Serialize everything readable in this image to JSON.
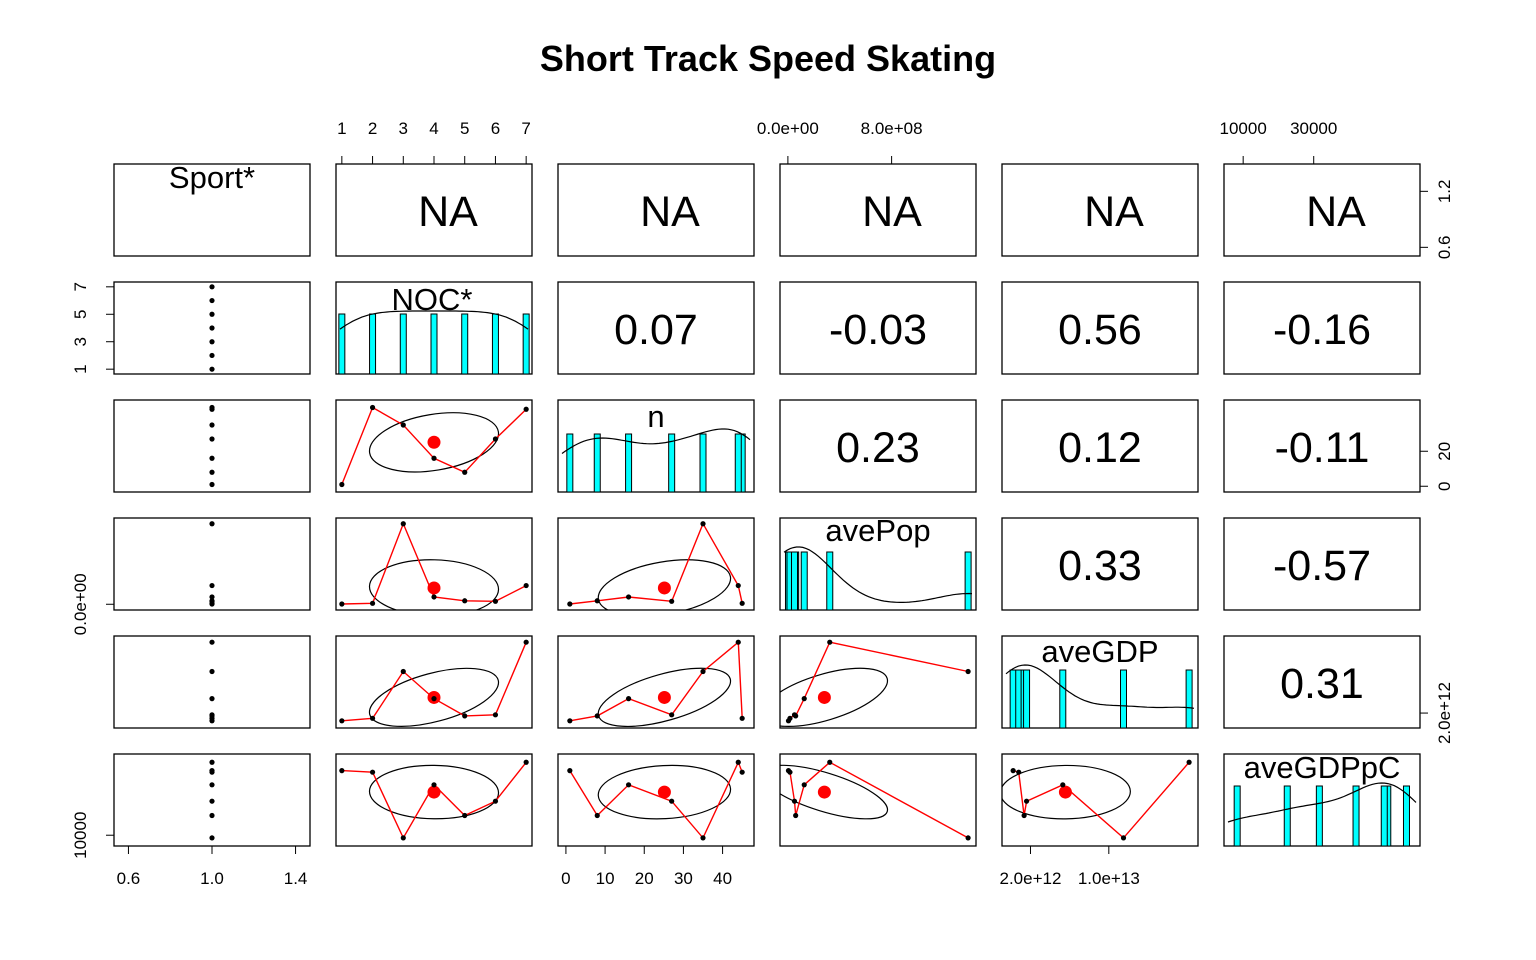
{
  "chart_data": {
    "type": "scatter",
    "title": "Short Track Speed Skating",
    "variables": [
      "Sport*",
      "NOC*",
      "n",
      "avePop",
      "aveGDP",
      "aveGDPpC"
    ],
    "upper_panel_labels": [
      {
        "row": 0,
        "col": 1,
        "text": "NA"
      },
      {
        "row": 0,
        "col": 2,
        "text": "NA"
      },
      {
        "row": 0,
        "col": 3,
        "text": "NA"
      },
      {
        "row": 0,
        "col": 4,
        "text": "NA"
      },
      {
        "row": 0,
        "col": 5,
        "text": "NA"
      },
      {
        "row": 1,
        "col": 2,
        "text": "0.07"
      },
      {
        "row": 1,
        "col": 3,
        "text": "-0.03"
      },
      {
        "row": 1,
        "col": 4,
        "text": "0.56"
      },
      {
        "row": 1,
        "col": 5,
        "text": "-0.16"
      },
      {
        "row": 2,
        "col": 3,
        "text": "0.23"
      },
      {
        "row": 2,
        "col": 4,
        "text": "0.12"
      },
      {
        "row": 2,
        "col": 5,
        "text": "-0.11"
      },
      {
        "row": 3,
        "col": 4,
        "text": "0.33"
      },
      {
        "row": 3,
        "col": 5,
        "text": "-0.57"
      },
      {
        "row": 4,
        "col": 5,
        "text": "0.31"
      }
    ],
    "axis_ticks": {
      "top": [
        {
          "col": 1,
          "labels": [
            "1",
            "2",
            "3",
            "4",
            "5",
            "6",
            "7"
          ]
        },
        {
          "col": 3,
          "labels": [
            "0.0e+00",
            "8.0e+08"
          ]
        },
        {
          "col": 5,
          "labels": [
            "10000",
            "30000"
          ]
        }
      ],
      "bottom": [
        {
          "col": 0,
          "labels": [
            "0.6",
            "1.0",
            "1.4"
          ]
        },
        {
          "col": 2,
          "labels": [
            "0",
            "10",
            "20",
            "30",
            "40"
          ]
        },
        {
          "col": 4,
          "labels": [
            "2.0e+12",
            "1.0e+13"
          ]
        }
      ],
      "left": [
        {
          "row": 1,
          "labels": [
            "1",
            "3",
            "5",
            "7"
          ]
        },
        {
          "row": 3,
          "labels": [
            "0.0e+00"
          ]
        },
        {
          "row": 5,
          "labels": [
            "10000"
          ]
        }
      ],
      "right": [
        {
          "row": 0,
          "labels": [
            "0.6",
            "1.2"
          ]
        },
        {
          "row": 2,
          "labels": [
            "0",
            "20"
          ]
        },
        {
          "row": 4,
          "labels": [
            "2.0e+12"
          ]
        }
      ]
    },
    "series": [
      {
        "values": [
          1,
          1,
          1,
          1,
          1,
          1,
          1
        ]
      },
      {
        "values": [
          1,
          2,
          3,
          4,
          5,
          6,
          7
        ]
      },
      {
        "values": [
          1,
          45,
          35,
          16,
          8,
          27,
          44
        ]
      },
      {
        "values": [
          4500000,
          16000000,
          1390000000,
          126000000,
          60000000,
          51000000,
          323000000
        ]
      },
      {
        "values": [
          230000000000,
          800000000000,
          11500000000000,
          5300000000000,
          1350000000000,
          1600000000000,
          18200000000000
        ]
      },
      {
        "values": [
          51000,
          50000,
          8300,
          42000,
          22500,
          31600,
          56300
        ]
      }
    ],
    "correlation_matrix": [
      [
        "NA",
        "NA",
        "NA",
        "NA",
        "NA",
        "NA"
      ],
      [
        "NA",
        1,
        0.07,
        -0.03,
        0.56,
        -0.16
      ],
      [
        "NA",
        0.07,
        1,
        0.23,
        0.12,
        -0.11
      ],
      [
        "NA",
        -0.03,
        0.23,
        1,
        0.33,
        -0.57
      ],
      [
        "NA",
        0.56,
        0.12,
        0.33,
        1,
        0.31
      ],
      [
        "NA",
        -0.16,
        -0.11,
        -0.57,
        0.31,
        1
      ]
    ],
    "grid": false,
    "colors": {
      "hist_fill": "#00FFFF",
      "fit_line": "#FF0000",
      "mean_point": "#FF0000",
      "ellipse": "#000000"
    }
  }
}
